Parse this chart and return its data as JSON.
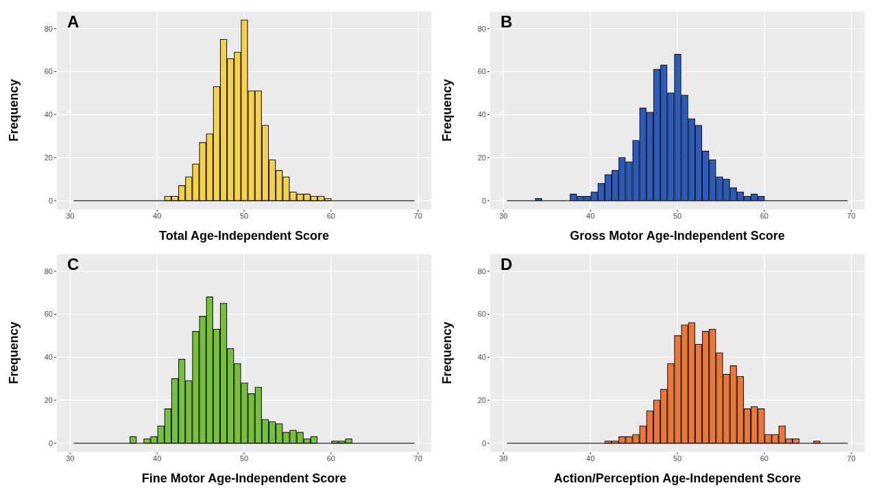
{
  "chart_data": [
    {
      "type": "histogram",
      "annotations": [
        "A"
      ],
      "xlabel": "Total Age-Independent Score",
      "ylabel": "Frequency",
      "color": "#f7d14a",
      "grid": true,
      "xlim": [
        28.4,
        71.6
      ],
      "xticks": [
        30,
        40,
        50,
        60,
        70
      ],
      "ylim": [
        -4.2,
        88.2
      ],
      "yticks": [
        0,
        20,
        40,
        60,
        80
      ],
      "bins": [
        30.4,
        31.2,
        32.0,
        32.8,
        33.6,
        34.4,
        35.2,
        36.0,
        36.8,
        37.6,
        38.4,
        39.2,
        40.0,
        40.8,
        41.6,
        42.4,
        43.2,
        44.0,
        44.8,
        45.6,
        46.4,
        47.2,
        48.0,
        48.8,
        49.6,
        50.4,
        51.2,
        52.0,
        52.8,
        53.6,
        54.4,
        55.2,
        56.0,
        56.8,
        57.6,
        58.4,
        59.2,
        60.0,
        60.8,
        61.6,
        62.4,
        63.2,
        64.0,
        64.8,
        65.6,
        66.4,
        67.2,
        68.0,
        68.8,
        69.6
      ],
      "values": [
        0,
        0,
        0,
        0,
        0,
        0,
        0,
        0,
        0,
        0,
        0,
        0,
        0,
        2,
        2,
        7,
        11,
        17,
        27,
        31,
        53,
        75,
        66,
        69,
        84,
        51,
        51,
        35,
        19,
        14,
        11,
        4,
        3,
        3,
        2,
        2,
        1,
        0,
        0,
        0,
        0,
        0,
        0,
        0,
        0,
        0,
        0,
        0,
        0
      ]
    },
    {
      "type": "histogram",
      "annotations": [
        "B"
      ],
      "xlabel": "Gross Motor Age-Independent Score",
      "ylabel": "Frequency",
      "color": "#2a5cbf",
      "grid": true,
      "xlim": [
        28.4,
        71.6
      ],
      "xticks": [
        30,
        40,
        50,
        60,
        70
      ],
      "ylim": [
        -4.2,
        88.2
      ],
      "yticks": [
        0,
        20,
        40,
        60,
        80
      ],
      "bins": [
        30.4,
        31.2,
        32.0,
        32.8,
        33.6,
        34.4,
        35.2,
        36.0,
        36.8,
        37.6,
        38.4,
        39.2,
        40.0,
        40.8,
        41.6,
        42.4,
        43.2,
        44.0,
        44.8,
        45.6,
        46.4,
        47.2,
        48.0,
        48.8,
        49.6,
        50.4,
        51.2,
        52.0,
        52.8,
        53.6,
        54.4,
        55.2,
        56.0,
        56.8,
        57.6,
        58.4,
        59.2,
        60.0,
        60.8,
        61.6,
        62.4,
        63.2,
        64.0,
        64.8,
        65.6,
        66.4,
        67.2,
        68.0,
        68.8,
        69.6
      ],
      "values": [
        0,
        0,
        0,
        0,
        1,
        0,
        0,
        0,
        0,
        3,
        2,
        2,
        4,
        8,
        12,
        14,
        20,
        18,
        28,
        43,
        41,
        61,
        63,
        50,
        68,
        49,
        38,
        35,
        23,
        19,
        11,
        10,
        6,
        4,
        2,
        3,
        2,
        0,
        0,
        0,
        0,
        0,
        0,
        0,
        0,
        0,
        0,
        0,
        0
      ]
    },
    {
      "type": "histogram",
      "annotations": [
        "C"
      ],
      "xlabel": "Fine Motor Age-Independent Score",
      "ylabel": "Frequency",
      "color": "#73c23a",
      "grid": true,
      "xlim": [
        28.4,
        71.6
      ],
      "xticks": [
        30,
        40,
        50,
        60,
        70
      ],
      "ylim": [
        -4.2,
        88.2
      ],
      "yticks": [
        0,
        20,
        40,
        60,
        80
      ],
      "bins": [
        30.4,
        31.2,
        32.0,
        32.8,
        33.6,
        34.4,
        35.2,
        36.0,
        36.8,
        37.6,
        38.4,
        39.2,
        40.0,
        40.8,
        41.6,
        42.4,
        43.2,
        44.0,
        44.8,
        45.6,
        46.4,
        47.2,
        48.0,
        48.8,
        49.6,
        50.4,
        51.2,
        52.0,
        52.8,
        53.6,
        54.4,
        55.2,
        56.0,
        56.8,
        57.6,
        58.4,
        59.2,
        60.0,
        60.8,
        61.6,
        62.4,
        63.2,
        64.0,
        64.8,
        65.6,
        66.4,
        67.2,
        68.0,
        68.8,
        69.6
      ],
      "values": [
        0,
        0,
        0,
        0,
        0,
        0,
        0,
        0,
        3,
        0,
        2,
        3,
        8,
        16,
        30,
        39,
        29,
        52,
        59,
        68,
        53,
        65,
        44,
        37,
        28,
        23,
        26,
        11,
        10,
        9,
        5,
        6,
        5,
        2,
        3,
        0,
        0,
        1,
        1,
        2,
        0,
        0,
        0,
        0,
        0,
        0,
        0,
        0,
        0
      ]
    },
    {
      "type": "histogram",
      "annotations": [
        "D"
      ],
      "xlabel": "Action/Perception Age-Independent Score",
      "ylabel": "Frequency",
      "color": "#ee7636",
      "grid": true,
      "xlim": [
        28.4,
        71.6
      ],
      "xticks": [
        30,
        40,
        50,
        60,
        70
      ],
      "ylim": [
        -4.2,
        88.2
      ],
      "yticks": [
        0,
        20,
        40,
        60,
        80
      ],
      "bins": [
        30.4,
        31.2,
        32.0,
        32.8,
        33.6,
        34.4,
        35.2,
        36.0,
        36.8,
        37.6,
        38.4,
        39.2,
        40.0,
        40.8,
        41.6,
        42.4,
        43.2,
        44.0,
        44.8,
        45.6,
        46.4,
        47.2,
        48.0,
        48.8,
        49.6,
        50.4,
        51.2,
        52.0,
        52.8,
        53.6,
        54.4,
        55.2,
        56.0,
        56.8,
        57.6,
        58.4,
        59.2,
        60.0,
        60.8,
        61.6,
        62.4,
        63.2,
        64.0,
        64.8,
        65.6,
        66.4,
        67.2,
        68.0,
        68.8,
        69.6
      ],
      "values": [
        0,
        0,
        0,
        0,
        0,
        0,
        0,
        0,
        0,
        0,
        0,
        0,
        0,
        0,
        1,
        1,
        3,
        3,
        4,
        8,
        15,
        20,
        25,
        37,
        50,
        55,
        56,
        46,
        52,
        53,
        42,
        32,
        36,
        31,
        16,
        17,
        16,
        4,
        4,
        8,
        2,
        2,
        0,
        0,
        1,
        0,
        0,
        0,
        0
      ]
    }
  ]
}
